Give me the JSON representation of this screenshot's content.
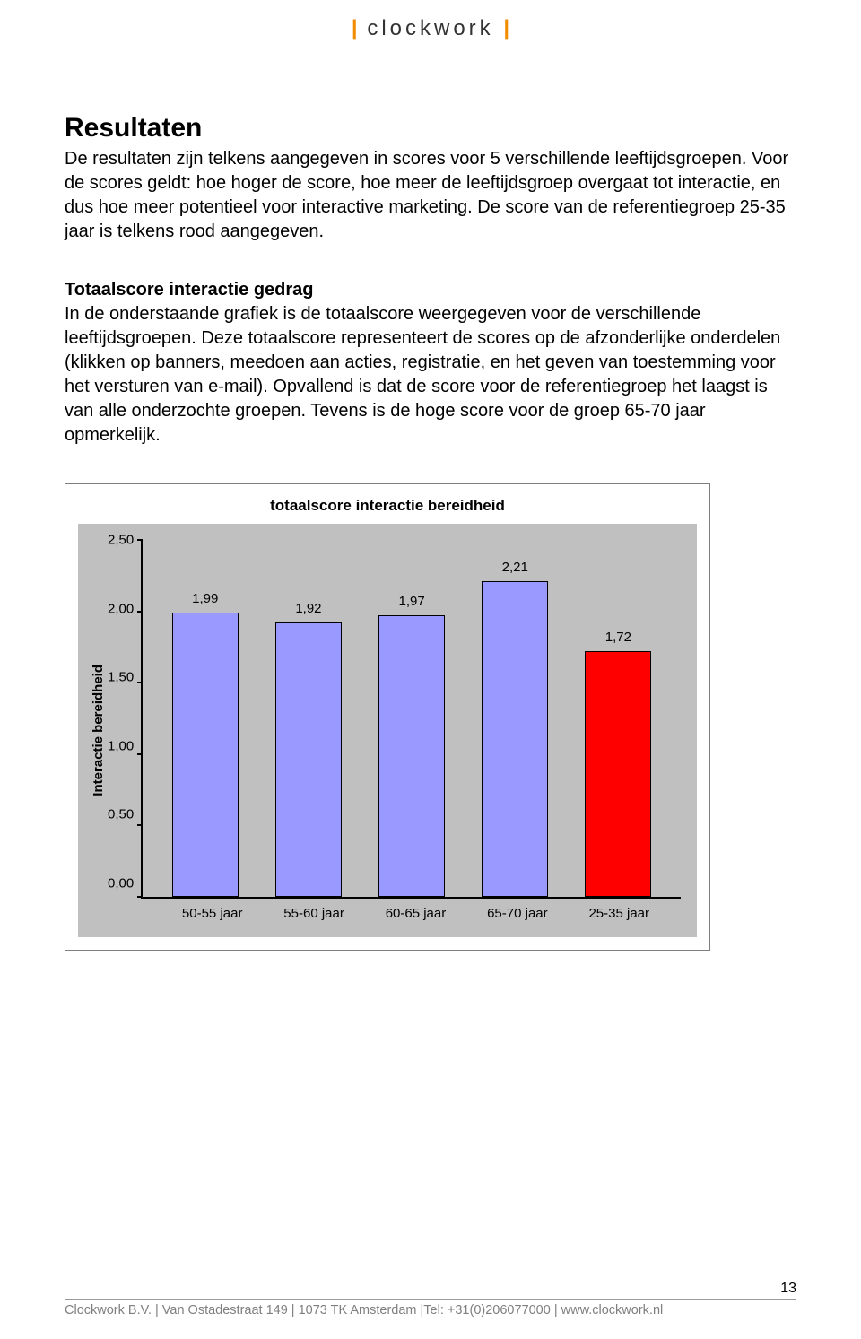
{
  "header": {
    "logo_text": "clockwork"
  },
  "section": {
    "title": "Resultaten",
    "intro": "De resultaten zijn telkens aangegeven in scores voor 5 verschillende leeftijdsgroepen. Voor de scores geldt: hoe hoger de score, hoe meer de leeftijdsgroep overgaat tot interactie, en dus hoe meer potentieel voor interactive marketing. De score van de referentiegroep 25-35 jaar is telkens rood aangegeven.",
    "sub_heading": "Totaalscore interactie gedrag",
    "sub_text": "In de onderstaande grafiek is de totaalscore weergegeven voor de verschillende leeftijdsgroepen. Deze totaalscore representeert de scores op de afzonderlijke onderdelen (klikken op banners, meedoen aan acties, registratie, en het geven van toestemming voor het versturen van e-mail). Opvallend is dat de score voor de referentiegroep het laagst is van alle onderzochte groepen. Tevens is de hoge score voor de groep 65-70 jaar opmerkelijk."
  },
  "chart": {
    "type": "bar",
    "title": "totaalscore interactie bereidheid",
    "y_axis_title": "Interactie bereidheid",
    "ylim": [
      0.0,
      2.5
    ],
    "y_ticks": [
      "2,50",
      "2,00",
      "1,50",
      "1,00",
      "0,50",
      "0,00"
    ],
    "categories": [
      "50-55 jaar",
      "55-60 jaar",
      "60-65 jaar",
      "65-70 jaar",
      "25-35 jaar"
    ],
    "values": [
      1.99,
      1.92,
      1.97,
      2.21,
      1.72
    ],
    "value_labels": [
      "1,99",
      "1,92",
      "1,97",
      "2,21",
      "1,72"
    ],
    "bar_colors": [
      "#9999ff",
      "#9999ff",
      "#9999ff",
      "#9999ff",
      "#ff0000"
    ],
    "plot_background": "#c0c0c0",
    "bar_border": "#000000",
    "axis_color": "#000000",
    "title_fontsize": 17,
    "label_fontsize": 15
  },
  "footer": {
    "text": "Clockwork B.V. | Van Ostadestraat 149 | 1073 TK Amsterdam |Tel: +31(0)206077000 | www.clockwork.nl",
    "page_number": "13"
  }
}
